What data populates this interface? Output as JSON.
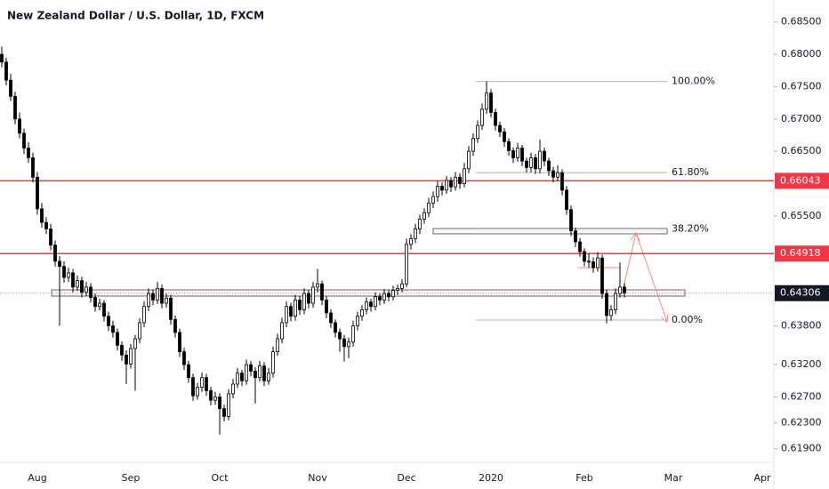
{
  "chart_data": {
    "type": "candlestick",
    "title": "New Zealand Dollar / U.S. Dollar, 1D, FXCM",
    "ylim": [
      0.6169,
      0.6884
    ],
    "yticks": [
      {
        "value": 0.685,
        "label": "0.68500"
      },
      {
        "value": 0.68,
        "label": "0.68000"
      },
      {
        "value": 0.675,
        "label": "0.67500"
      },
      {
        "value": 0.67,
        "label": "0.67000"
      },
      {
        "value": 0.665,
        "label": "0.66500"
      },
      {
        "value": 0.655,
        "label": "0.65500"
      },
      {
        "value": 0.638,
        "label": "0.63800"
      },
      {
        "value": 0.632,
        "label": "0.63200"
      },
      {
        "value": 0.627,
        "label": "0.62700"
      },
      {
        "value": 0.623,
        "label": "0.62300"
      },
      {
        "value": 0.619,
        "label": "0.61900"
      }
    ],
    "up_color": "#ffffff",
    "down_color": "#000000",
    "levels": [
      {
        "value": 0.66043,
        "label": "0.66043",
        "color": "#f23645"
      },
      {
        "value": 0.64918,
        "label": "0.64918",
        "color": "#f23645"
      },
      {
        "value": 0.64306,
        "label": "0.64306",
        "color": "#131722"
      }
    ],
    "fib_levels": [
      {
        "label": "100.00%",
        "value": 0.6758
      },
      {
        "label": "61.80%",
        "value": 0.6617
      },
      {
        "label": "38.20%",
        "value": 0.653
      },
      {
        "label": "0.00%",
        "value": 0.6389
      }
    ],
    "fib_color": "#b2b5be",
    "categories": [
      null,
      null,
      null,
      null,
      null,
      null,
      null,
      null,
      "Aug",
      null,
      null,
      null,
      null,
      null,
      null,
      null,
      null,
      null,
      null,
      null,
      null,
      null,
      null,
      null,
      null,
      null,
      null,
      null,
      null,
      "Sep",
      null,
      null,
      null,
      null,
      null,
      null,
      null,
      null,
      null,
      null,
      null,
      null,
      null,
      null,
      null,
      null,
      null,
      null,
      null,
      "Oct",
      null,
      null,
      null,
      null,
      null,
      null,
      null,
      null,
      null,
      null,
      null,
      null,
      null,
      null,
      null,
      null,
      null,
      null,
      null,
      null,
      null,
      "Nov",
      null,
      null,
      null,
      null,
      null,
      null,
      null,
      null,
      null,
      null,
      null,
      null,
      null,
      null,
      null,
      null,
      null,
      null,
      null,
      "Dec",
      null,
      null,
      null,
      null,
      null,
      null,
      null,
      null,
      null,
      null,
      null,
      null,
      null,
      null,
      null,
      null,
      null,
      null,
      "2020",
      null,
      null,
      null,
      null,
      null,
      null,
      null,
      null,
      null,
      null,
      null,
      null,
      null,
      null,
      null,
      null,
      null,
      null,
      null,
      null,
      "Feb",
      null,
      null,
      null,
      null,
      null,
      null,
      null,
      null,
      null,
      null,
      null,
      null,
      null,
      null,
      null,
      null,
      null,
      null,
      null,
      "Mar",
      null,
      null,
      null,
      null,
      null,
      null,
      null,
      null,
      null,
      null,
      null,
      null,
      null,
      null,
      null,
      null,
      null,
      null,
      null,
      "Apr",
      null,
      null
    ],
    "candles": [
      [
        0.68,
        0.6812,
        0.678,
        0.6788
      ],
      [
        0.6788,
        0.6795,
        0.6752,
        0.676
      ],
      [
        0.676,
        0.677,
        0.6728,
        0.6735
      ],
      [
        0.6735,
        0.6742,
        0.6692,
        0.67
      ],
      [
        0.67,
        0.671,
        0.667,
        0.6678
      ],
      [
        0.6678,
        0.6685,
        0.6646,
        0.6655
      ],
      [
        0.6655,
        0.6664,
        0.6632,
        0.664
      ],
      [
        0.664,
        0.6648,
        0.6602,
        0.661
      ],
      [
        0.661,
        0.6618,
        0.6552,
        0.6561
      ],
      [
        0.6561,
        0.657,
        0.6532,
        0.654
      ],
      [
        0.654,
        0.6548,
        0.6522,
        0.653
      ],
      [
        0.653,
        0.6538,
        0.6497,
        0.6505
      ],
      [
        0.6505,
        0.6512,
        0.6472,
        0.648
      ],
      [
        0.648,
        0.6488,
        0.638,
        0.6472
      ],
      [
        0.6472,
        0.648,
        0.6447,
        0.6455
      ],
      [
        0.6455,
        0.647,
        0.6448,
        0.6462
      ],
      [
        0.6462,
        0.6468,
        0.6432,
        0.644
      ],
      [
        0.644,
        0.6458,
        0.6434,
        0.645
      ],
      [
        0.645,
        0.6456,
        0.6424,
        0.6432
      ],
      [
        0.6432,
        0.6448,
        0.6426,
        0.644
      ],
      [
        0.644,
        0.6446,
        0.6416,
        0.6424
      ],
      [
        0.6424,
        0.643,
        0.6402,
        0.641
      ],
      [
        0.641,
        0.6422,
        0.6404,
        0.6415
      ],
      [
        0.6415,
        0.642,
        0.6387,
        0.6395
      ],
      [
        0.6395,
        0.6402,
        0.6372,
        0.638
      ],
      [
        0.638,
        0.6388,
        0.6362,
        0.637
      ],
      [
        0.637,
        0.6376,
        0.6342,
        0.635
      ],
      [
        0.635,
        0.6356,
        0.6326,
        0.6335
      ],
      [
        0.6335,
        0.6342,
        0.629,
        0.6321
      ],
      [
        0.6321,
        0.6352,
        0.6314,
        0.6345
      ],
      [
        0.6345,
        0.6366,
        0.628,
        0.636
      ],
      [
        0.636,
        0.6392,
        0.6353,
        0.6385
      ],
      [
        0.6385,
        0.6418,
        0.6378,
        0.641
      ],
      [
        0.641,
        0.6438,
        0.6403,
        0.643
      ],
      [
        0.643,
        0.6436,
        0.6412,
        0.642
      ],
      [
        0.642,
        0.6448,
        0.6414,
        0.6438
      ],
      [
        0.6438,
        0.6444,
        0.6407,
        0.6415
      ],
      [
        0.6415,
        0.643,
        0.6408,
        0.6423
      ],
      [
        0.6423,
        0.6428,
        0.6382,
        0.639
      ],
      [
        0.639,
        0.6396,
        0.6362,
        0.637
      ],
      [
        0.637,
        0.6376,
        0.6332,
        0.634
      ],
      [
        0.634,
        0.6346,
        0.6312,
        0.632
      ],
      [
        0.632,
        0.6326,
        0.6292,
        0.63
      ],
      [
        0.63,
        0.6306,
        0.6264,
        0.6272
      ],
      [
        0.6272,
        0.6292,
        0.6266,
        0.6285
      ],
      [
        0.6285,
        0.6308,
        0.6278,
        0.63
      ],
      [
        0.63,
        0.6306,
        0.6272,
        0.628
      ],
      [
        0.628,
        0.6286,
        0.6257,
        0.6265
      ],
      [
        0.6265,
        0.6278,
        0.6258,
        0.627
      ],
      [
        0.627,
        0.6276,
        0.6212,
        0.6252
      ],
      [
        0.6252,
        0.6258,
        0.6232,
        0.624
      ],
      [
        0.624,
        0.6282,
        0.6234,
        0.6275
      ],
      [
        0.6275,
        0.6298,
        0.6268,
        0.629
      ],
      [
        0.629,
        0.6315,
        0.6284,
        0.6307
      ],
      [
        0.6307,
        0.6312,
        0.6287,
        0.6295
      ],
      [
        0.6295,
        0.6328,
        0.6289,
        0.632
      ],
      [
        0.632,
        0.6326,
        0.6302,
        0.631
      ],
      [
        0.631,
        0.6316,
        0.626,
        0.63
      ],
      [
        0.63,
        0.6326,
        0.6294,
        0.6318
      ],
      [
        0.6318,
        0.6324,
        0.6287,
        0.6295
      ],
      [
        0.6295,
        0.6315,
        0.6289,
        0.6307
      ],
      [
        0.6307,
        0.6348,
        0.63,
        0.634
      ],
      [
        0.634,
        0.6368,
        0.6334,
        0.636
      ],
      [
        0.636,
        0.6393,
        0.6353,
        0.6385
      ],
      [
        0.6385,
        0.6418,
        0.6378,
        0.641
      ],
      [
        0.641,
        0.6416,
        0.6387,
        0.6395
      ],
      [
        0.6395,
        0.6428,
        0.6388,
        0.642
      ],
      [
        0.642,
        0.6426,
        0.6397,
        0.6405
      ],
      [
        0.6405,
        0.6438,
        0.6398,
        0.643
      ],
      [
        0.643,
        0.6436,
        0.6407,
        0.6415
      ],
      [
        0.6415,
        0.6448,
        0.6408,
        0.644
      ],
      [
        0.644,
        0.6468,
        0.6432,
        0.6445
      ],
      [
        0.6445,
        0.645,
        0.6412,
        0.642
      ],
      [
        0.642,
        0.6426,
        0.6392,
        0.64
      ],
      [
        0.64,
        0.6406,
        0.6377,
        0.6385
      ],
      [
        0.6385,
        0.639,
        0.6362,
        0.637
      ],
      [
        0.637,
        0.6376,
        0.634,
        0.636
      ],
      [
        0.636,
        0.6366,
        0.6325,
        0.6348
      ],
      [
        0.6348,
        0.6362,
        0.633,
        0.6355
      ],
      [
        0.6355,
        0.6388,
        0.6348,
        0.638
      ],
      [
        0.638,
        0.6402,
        0.6373,
        0.6395
      ],
      [
        0.6395,
        0.6412,
        0.6388,
        0.6405
      ],
      [
        0.6405,
        0.6424,
        0.6398,
        0.6417
      ],
      [
        0.6417,
        0.6422,
        0.6402,
        0.641
      ],
      [
        0.641,
        0.6432,
        0.6404,
        0.6425
      ],
      [
        0.6425,
        0.643,
        0.6412,
        0.642
      ],
      [
        0.642,
        0.6437,
        0.6414,
        0.643
      ],
      [
        0.643,
        0.6436,
        0.6418,
        0.6425
      ],
      [
        0.6425,
        0.6442,
        0.6419,
        0.6435
      ],
      [
        0.6435,
        0.6444,
        0.6428,
        0.6438
      ],
      [
        0.6438,
        0.6452,
        0.6432,
        0.6445
      ],
      [
        0.6445,
        0.6515,
        0.644,
        0.6506
      ],
      [
        0.6506,
        0.6522,
        0.6498,
        0.6515
      ],
      [
        0.6515,
        0.6538,
        0.6508,
        0.653
      ],
      [
        0.653,
        0.6552,
        0.6522,
        0.6545
      ],
      [
        0.6545,
        0.6562,
        0.6538,
        0.6555
      ],
      [
        0.6555,
        0.6578,
        0.6548,
        0.657
      ],
      [
        0.657,
        0.6588,
        0.6562,
        0.658
      ],
      [
        0.658,
        0.6604,
        0.6572,
        0.6596
      ],
      [
        0.6596,
        0.6602,
        0.6582,
        0.659
      ],
      [
        0.659,
        0.6612,
        0.6584,
        0.6605
      ],
      [
        0.6605,
        0.661,
        0.6587,
        0.6595
      ],
      [
        0.6595,
        0.6618,
        0.6589,
        0.661
      ],
      [
        0.661,
        0.6616,
        0.6592,
        0.66
      ],
      [
        0.66,
        0.6632,
        0.6594,
        0.6623
      ],
      [
        0.6623,
        0.6658,
        0.6616,
        0.665
      ],
      [
        0.665,
        0.6678,
        0.6643,
        0.667
      ],
      [
        0.667,
        0.6698,
        0.6663,
        0.669
      ],
      [
        0.669,
        0.6724,
        0.6683,
        0.6715
      ],
      [
        0.6715,
        0.6758,
        0.6708,
        0.674
      ],
      [
        0.674,
        0.6746,
        0.6702,
        0.671
      ],
      [
        0.671,
        0.6716,
        0.6682,
        0.669
      ],
      [
        0.669,
        0.6696,
        0.6672,
        0.668
      ],
      [
        0.668,
        0.6686,
        0.6657,
        0.6665
      ],
      [
        0.6665,
        0.667,
        0.6643,
        0.6651
      ],
      [
        0.6651,
        0.6656,
        0.6632,
        0.664
      ],
      [
        0.664,
        0.6663,
        0.6634,
        0.6655
      ],
      [
        0.6655,
        0.666,
        0.6627,
        0.6635
      ],
      [
        0.6635,
        0.664,
        0.6617,
        0.6625
      ],
      [
        0.6625,
        0.6648,
        0.6618,
        0.664
      ],
      [
        0.664,
        0.6646,
        0.6615,
        0.6623
      ],
      [
        0.6623,
        0.6668,
        0.6616,
        0.665
      ],
      [
        0.665,
        0.6656,
        0.6627,
        0.6635
      ],
      [
        0.6635,
        0.664,
        0.6612,
        0.662
      ],
      [
        0.662,
        0.6626,
        0.6602,
        0.661
      ],
      [
        0.661,
        0.6628,
        0.6604,
        0.6617
      ],
      [
        0.6617,
        0.6622,
        0.6582,
        0.659
      ],
      [
        0.659,
        0.6596,
        0.6552,
        0.656
      ],
      [
        0.656,
        0.6566,
        0.6519,
        0.6527
      ],
      [
        0.6527,
        0.6532,
        0.6502,
        0.651
      ],
      [
        0.651,
        0.6516,
        0.6487,
        0.6495
      ],
      [
        0.6495,
        0.65,
        0.6472,
        0.648
      ],
      [
        0.648,
        0.6492,
        0.647,
        0.6479
      ],
      [
        0.6479,
        0.6486,
        0.6462,
        0.647
      ],
      [
        0.647,
        0.6494,
        0.6464,
        0.6485
      ],
      [
        0.6485,
        0.649,
        0.6422,
        0.643
      ],
      [
        0.643,
        0.6436,
        0.6384,
        0.6396
      ],
      [
        0.6396,
        0.6412,
        0.6388,
        0.6405
      ],
      [
        0.6405,
        0.6438,
        0.6398,
        0.643
      ],
      [
        0.643,
        0.6478,
        0.6424,
        0.644
      ],
      [
        0.644,
        0.6446,
        0.6424,
        0.6431
      ],
      null,
      null,
      null,
      null,
      null,
      null,
      null,
      null,
      null,
      null,
      null,
      null,
      null,
      null,
      null,
      null,
      null,
      null,
      null,
      null,
      null,
      null,
      null,
      null,
      null,
      null,
      null,
      null,
      null,
      null,
      null,
      null,
      null
    ]
  }
}
